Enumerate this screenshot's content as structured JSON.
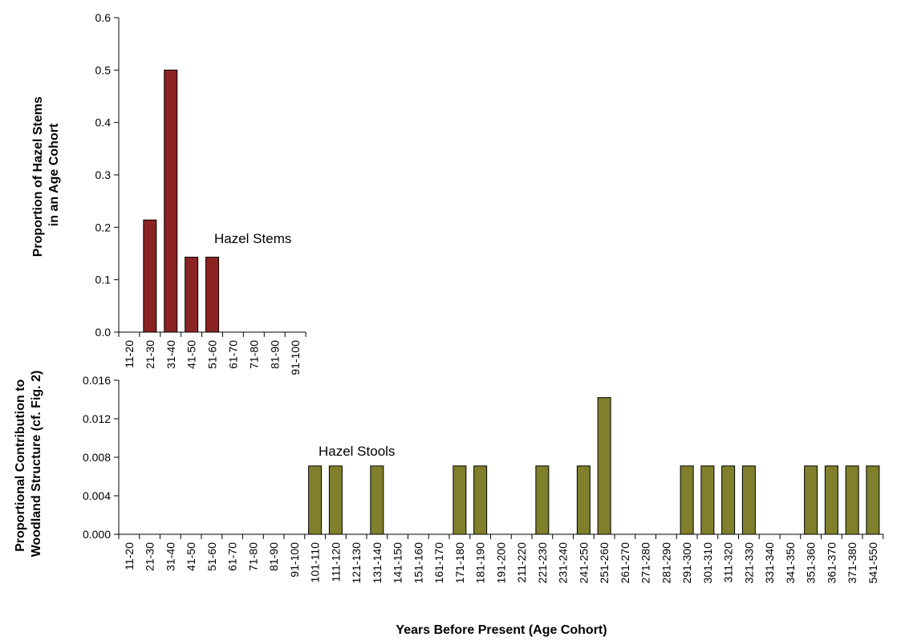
{
  "chart_data": [
    {
      "type": "bar",
      "title": "",
      "ylabel_lines": [
        "Proportion of Hazel Stems",
        "in an Age Cohort"
      ],
      "xlabel": "",
      "annotation": "Hazel Stems",
      "categories": [
        "11-20",
        "21-30",
        "31-40",
        "41-50",
        "51-60",
        "61-70",
        "71-80",
        "81-90",
        "91-100"
      ],
      "values": [
        0,
        0.214,
        0.5,
        0.143,
        0.143,
        0,
        0,
        0,
        0
      ],
      "ylim": [
        0,
        0.6
      ],
      "yticks": [
        "0.0",
        "0.1",
        "0.2",
        "0.3",
        "0.4",
        "0.5",
        "0.6"
      ],
      "color": "#8b2323",
      "grid": false
    },
    {
      "type": "bar",
      "title": "",
      "ylabel_lines": [
        "Proportional Contribution to",
        "Woodland Structure (cf. Fig. 2)"
      ],
      "xlabel": "Years Before Present (Age Cohort)",
      "annotation": "Hazel Stools",
      "categories": [
        "11-20",
        "21-30",
        "31-40",
        "41-50",
        "51-60",
        "61-70",
        "71-80",
        "81-90",
        "91-100",
        "101-110",
        "111-120",
        "121-130",
        "131-140",
        "141-150",
        "151-160",
        "161-170",
        "171-180",
        "181-190",
        "191-200",
        "211-220",
        "221-230",
        "231-240",
        "241-250",
        "251-260",
        "261-270",
        "271-280",
        "281-290",
        "291-300",
        "301-310",
        "311-320",
        "321-330",
        "331-340",
        "341-350",
        "351-360",
        "361-370",
        "371-380",
        "541-550"
      ],
      "values": [
        0,
        0,
        0,
        0,
        0,
        0,
        0,
        0,
        0,
        0.0071,
        0.0071,
        0,
        0.0071,
        0,
        0,
        0,
        0.0071,
        0.0071,
        0,
        0,
        0.0071,
        0,
        0.0071,
        0.0142,
        0,
        0,
        0,
        0.0071,
        0.0071,
        0.0071,
        0.0071,
        0,
        0,
        0.0071,
        0.0071,
        0.0071,
        0.0071
      ],
      "ylim": [
        0,
        0.016
      ],
      "yticks": [
        "0.000",
        "0.004",
        "0.008",
        "0.012",
        "0.016"
      ],
      "color": "#7f7f2c",
      "grid": false
    }
  ]
}
